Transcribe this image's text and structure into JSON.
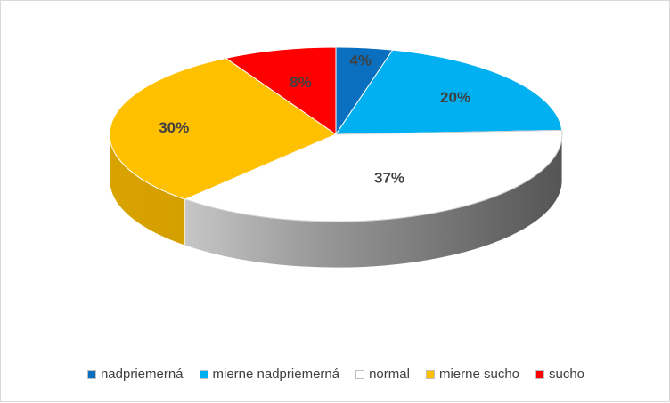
{
  "chart_data": {
    "type": "pie",
    "title": "",
    "style": "3d",
    "legend_position": "bottom",
    "categories": [
      "nadpriemerná",
      "mierne nadpriemerná",
      "normal",
      "mierne sucho",
      "sucho"
    ],
    "values": [
      4,
      20,
      37,
      30,
      8
    ],
    "labels": [
      "4%",
      "20%",
      "37%",
      "30%",
      "8%"
    ],
    "colors": [
      "#0b6fbf",
      "#00b0f0",
      "#ffffff",
      "#ffc000",
      "#ff0000"
    ]
  }
}
